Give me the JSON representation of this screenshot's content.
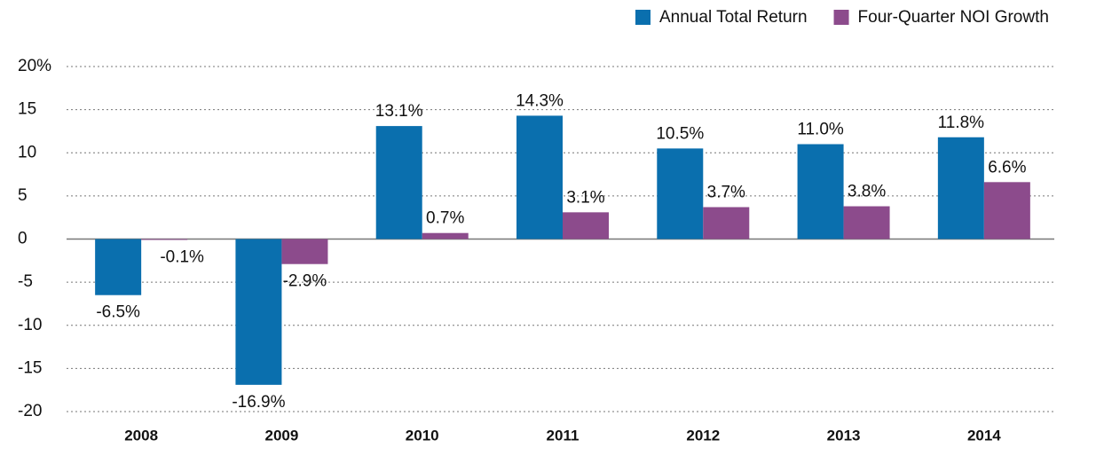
{
  "chart_data": {
    "type": "bar",
    "categories": [
      "2008",
      "2009",
      "2010",
      "2011",
      "2012",
      "2013",
      "2014"
    ],
    "series": [
      {
        "name": "Annual Total Return",
        "color": "#0a6fae",
        "values": [
          -6.5,
          -16.9,
          13.1,
          14.3,
          10.5,
          11.0,
          11.8
        ],
        "value_labels": [
          "-6.5%",
          "-16.9%",
          "13.1%",
          "14.3%",
          "10.5%",
          "11.0%",
          "11.8%"
        ]
      },
      {
        "name": "Four-Quarter NOI Growth",
        "color": "#8c4b8c",
        "values": [
          -0.1,
          -2.9,
          0.7,
          3.1,
          3.7,
          3.8,
          6.6
        ],
        "value_labels": [
          "-0.1%",
          "-2.9%",
          "0.7%",
          "3.1%",
          "3.7%",
          "3.8%",
          "6.6%"
        ]
      }
    ],
    "ylim": [
      -20,
      20
    ],
    "yticks": [
      -20,
      -15,
      -10,
      -5,
      0,
      5,
      10,
      15,
      {
        "value": 20,
        "label": "20%"
      }
    ],
    "grid": true,
    "legend": "top-right"
  }
}
